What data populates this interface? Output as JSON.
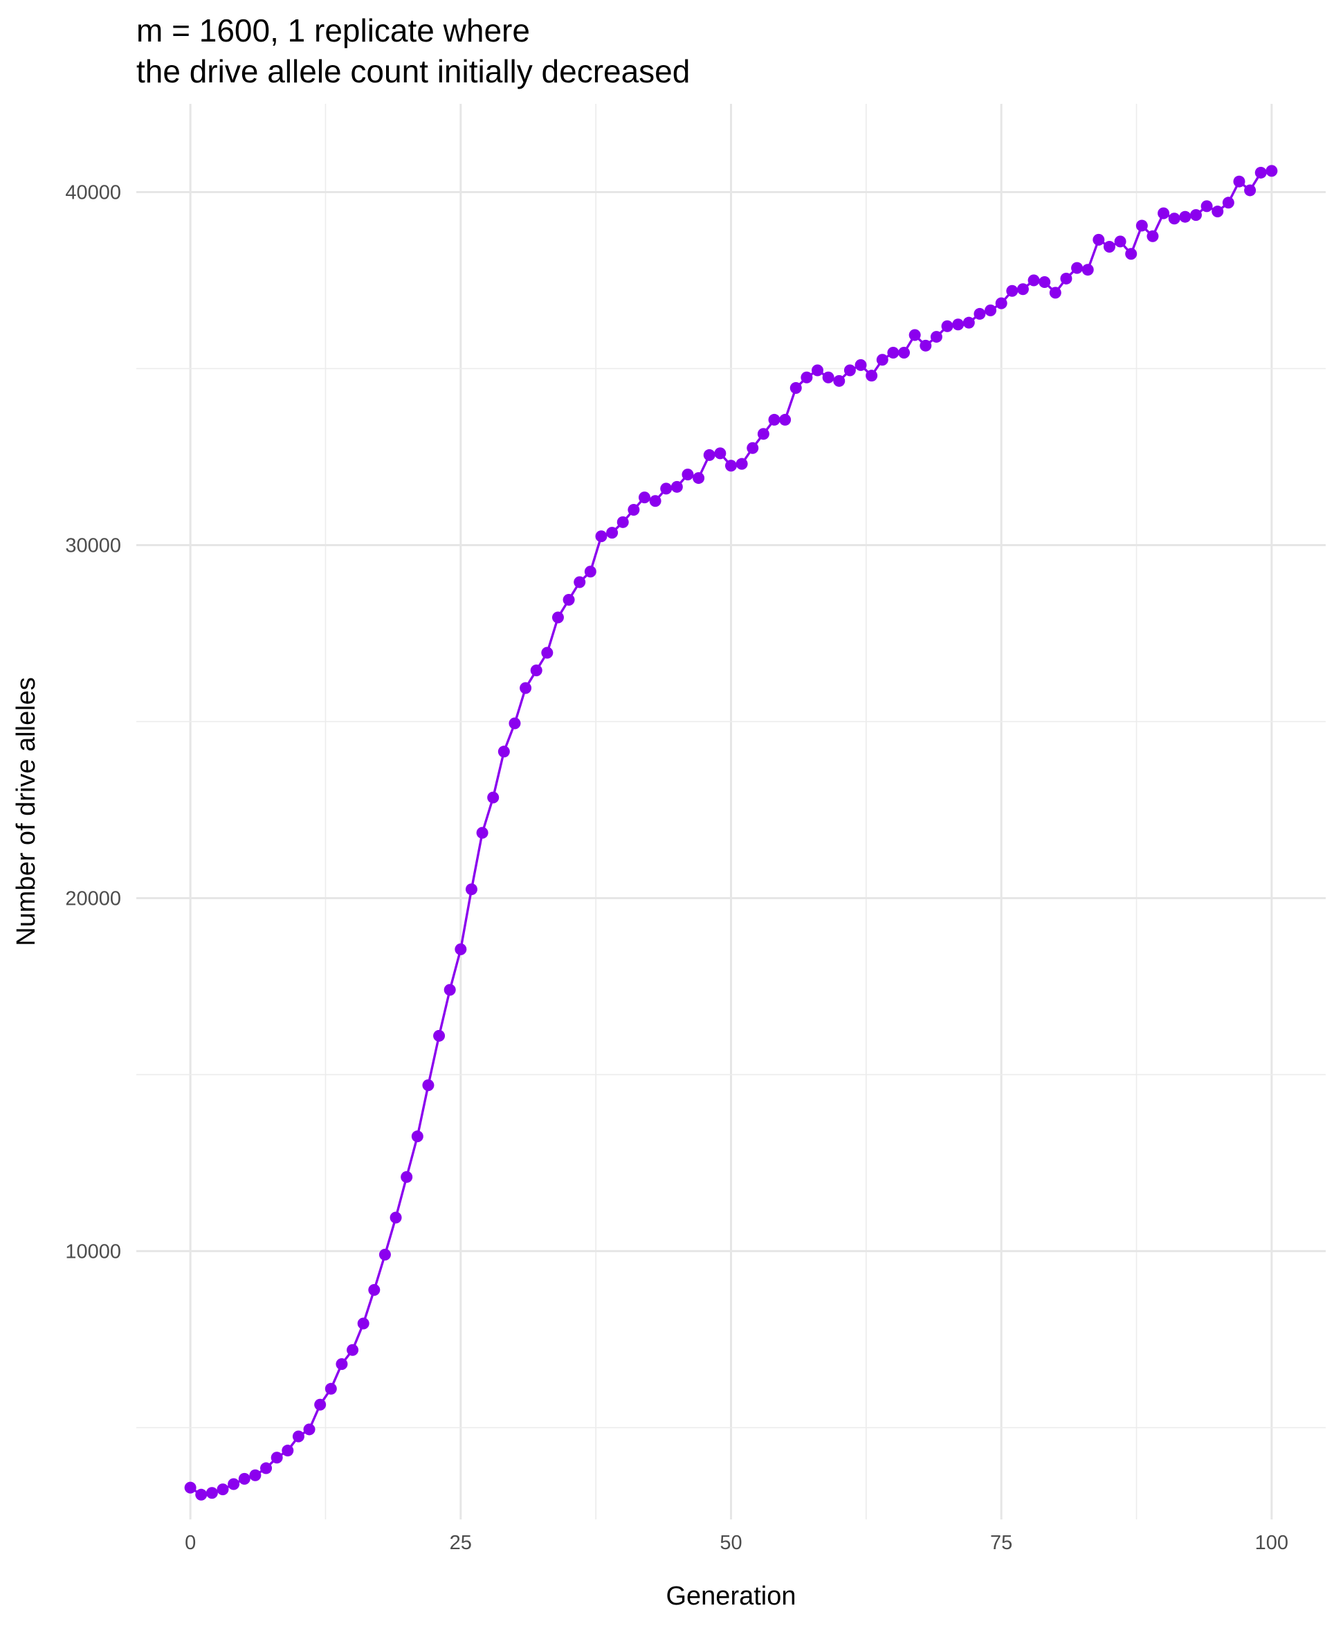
{
  "chart_data": {
    "type": "line",
    "title": "m = 1600, 1 replicate where\nthe drive allele count initially decreased",
    "xlabel": "Generation",
    "ylabel": "Number of drive alleles",
    "xlim": [
      -5,
      105
    ],
    "ylim": [
      2400,
      42500
    ],
    "x_ticks": [
      0,
      25,
      50,
      75,
      100
    ],
    "x_tick_labels": [
      "0",
      "25",
      "50",
      "75",
      "100"
    ],
    "y_ticks": [
      10000,
      20000,
      30000,
      40000
    ],
    "y_tick_labels": [
      "10000",
      "20000",
      "30000",
      "40000"
    ],
    "grid": true,
    "legend": "none",
    "colors": {
      "series": "#8B00EE",
      "grid": "#e6e6e6",
      "background": "#ffffff"
    },
    "series": [
      {
        "x": [
          0,
          1,
          2,
          3,
          4,
          5,
          6,
          7,
          8,
          9,
          10,
          11,
          12,
          13,
          14,
          15,
          16,
          17,
          18,
          19,
          20,
          21,
          22,
          23,
          24,
          25,
          26,
          27,
          28,
          29,
          30,
          31,
          32,
          33,
          34,
          35,
          36,
          37,
          38,
          39,
          40,
          41,
          42,
          43,
          44,
          45,
          46,
          47,
          48,
          49,
          50,
          51,
          52,
          53,
          54,
          55,
          56,
          57,
          58,
          59,
          60,
          61,
          62,
          63,
          64,
          65,
          66,
          67,
          68,
          69,
          70,
          71,
          72,
          73,
          74,
          75,
          76,
          77,
          78,
          79,
          80,
          81,
          82,
          83,
          84,
          85,
          86,
          87,
          88,
          89,
          90,
          91,
          92,
          93,
          94,
          95,
          96,
          97,
          98,
          99,
          100
        ],
        "y": [
          3300,
          3100,
          3150,
          3250,
          3400,
          3550,
          3650,
          3850,
          4150,
          4350,
          4750,
          4950,
          5650,
          6100,
          6800,
          7200,
          7950,
          8900,
          9900,
          10950,
          12100,
          13250,
          14700,
          16100,
          17400,
          18550,
          20250,
          21850,
          22850,
          24150,
          24950,
          25950,
          26450,
          26950,
          27950,
          28450,
          28950,
          29250,
          30250,
          30350,
          30650,
          31000,
          31350,
          31250,
          31600,
          31650,
          32000,
          31900,
          32550,
          32600,
          32250,
          32300,
          32750,
          33150,
          33550,
          33550,
          34450,
          34750,
          34950,
          34750,
          34650,
          34950,
          35100,
          34800,
          35250,
          35450,
          35450,
          35950,
          35650,
          35900,
          36200,
          36250,
          36300,
          36550,
          36650,
          36850,
          37200,
          37250,
          37500,
          37450,
          37150,
          37550,
          37850,
          37800,
          38650,
          38450,
          38600,
          38250,
          39050,
          38750,
          39400,
          39250,
          39300,
          39350,
          39600,
          39450,
          39700,
          40300,
          40050,
          40550,
          40600
        ]
      }
    ]
  }
}
